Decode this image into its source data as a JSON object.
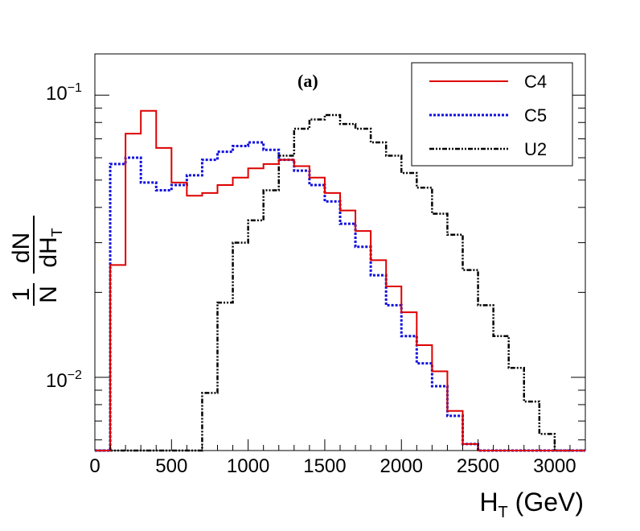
{
  "chart_data": {
    "type": "step-histogram",
    "panel_label": "(a)",
    "xlabel": {
      "main": "H",
      "sub": "T",
      "unit": " (GeV)"
    },
    "ylabel": {
      "num": "1",
      "den": "N",
      "dN": "dN",
      "dH": "dH",
      "sub": "T"
    },
    "xlim": [
      0,
      3200
    ],
    "ylim": [
      0.0055,
      0.14
    ],
    "yscale": "log",
    "x_ticks": [
      0,
      500,
      1000,
      1500,
      2000,
      2500,
      3000
    ],
    "x_tick_labels": [
      "0",
      "500",
      "1000",
      "1500",
      "2000",
      "2500",
      "3000"
    ],
    "y_tick_labels": [
      {
        "value": 0.1,
        "base": "10",
        "exp": "−1"
      },
      {
        "value": 0.01,
        "base": "10",
        "exp": "−2"
      }
    ],
    "bin_width": 100,
    "x_start": 0,
    "legend_position": "top-right",
    "series": [
      {
        "name": "C4",
        "color": "#dd0000",
        "style": "solid",
        "values": [
          0,
          0.025,
          0.073,
          0.088,
          0.065,
          0.049,
          0.044,
          0.045,
          0.048,
          0.051,
          0.055,
          0.057,
          0.059,
          0.056,
          0.051,
          0.045,
          0.039,
          0.033,
          0.026,
          0.021,
          0.017,
          0.013,
          0.0105,
          0.0076,
          0.0058,
          0.005,
          0.005,
          0.005,
          0.005,
          0.005,
          0.005,
          0.005
        ]
      },
      {
        "name": "C5",
        "color": "#1010dd",
        "style": "dotted",
        "values": [
          0,
          0.057,
          0.06,
          0.049,
          0.046,
          0.048,
          0.052,
          0.059,
          0.063,
          0.066,
          0.068,
          0.064,
          0.059,
          0.054,
          0.048,
          0.042,
          0.035,
          0.029,
          0.023,
          0.018,
          0.014,
          0.0112,
          0.0093,
          0.0073,
          0.0058,
          0.005,
          0.005,
          0.005,
          0.005,
          0.005,
          0.005,
          0.005
        ]
      },
      {
        "name": "U2",
        "color": "#000000",
        "style": "dashdot",
        "values": [
          0,
          0,
          0,
          0,
          0,
          0,
          0,
          0.0088,
          0.0184,
          0.03,
          0.036,
          0.046,
          0.061,
          0.076,
          0.082,
          0.085,
          0.079,
          0.076,
          0.068,
          0.061,
          0.053,
          0.047,
          0.038,
          0.032,
          0.024,
          0.018,
          0.014,
          0.0108,
          0.0082,
          0.0063,
          0.005,
          0.005
        ]
      }
    ]
  }
}
